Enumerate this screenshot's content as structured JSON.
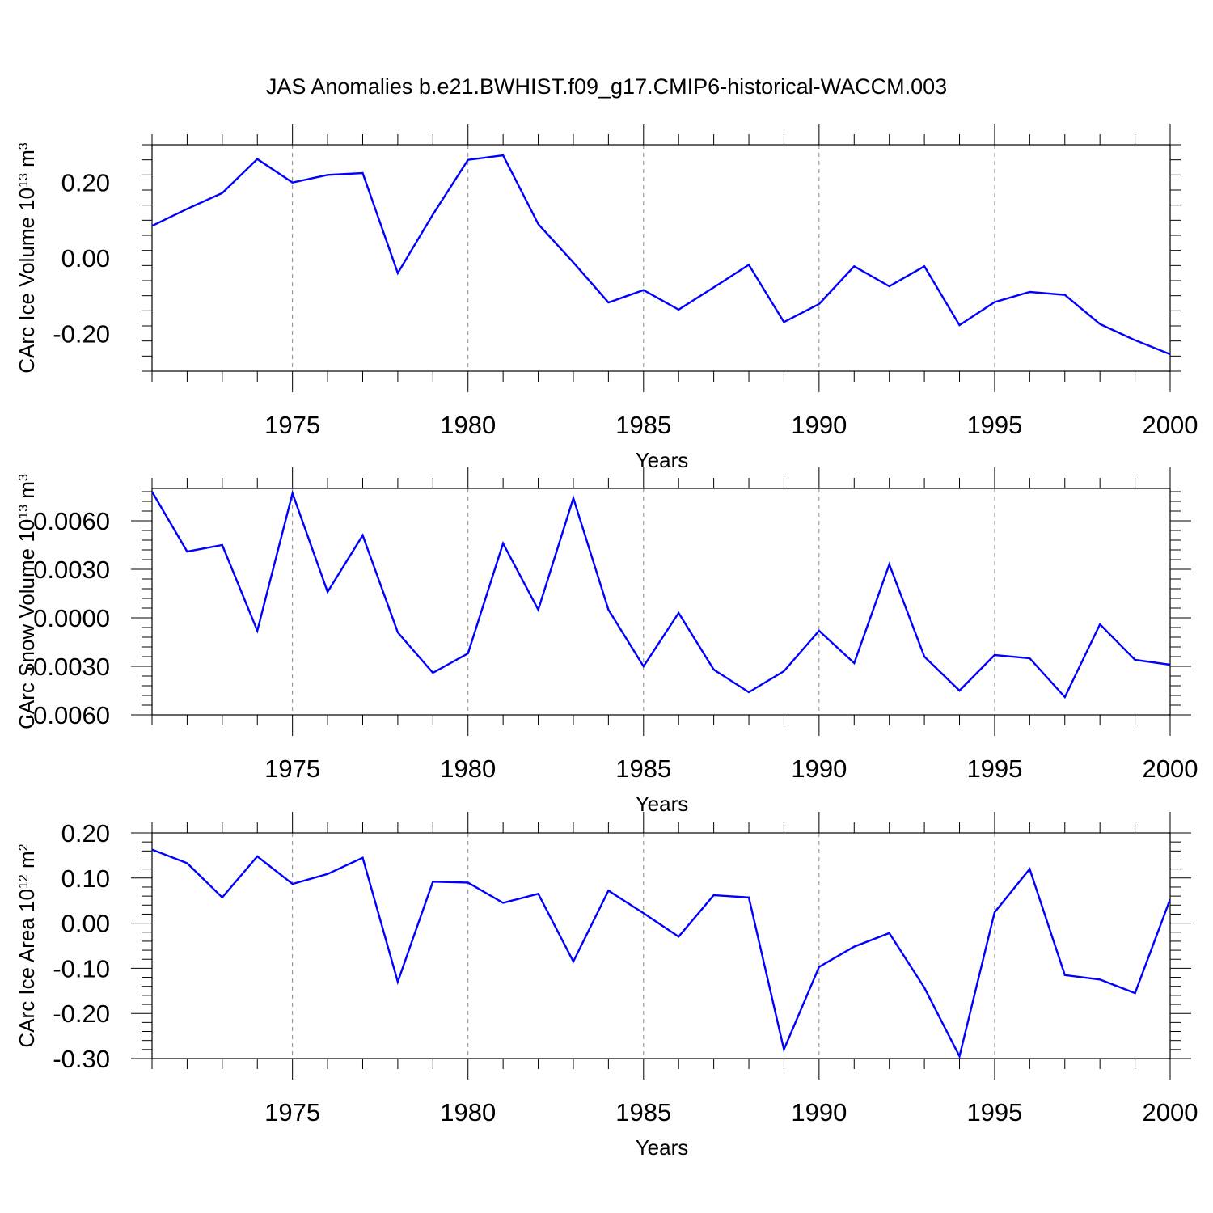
{
  "title": "JAS Anomalies b.e21.BWHIST.f09_g17.CMIP6-historical-WACCM.003",
  "colors": {
    "series": "#0000ff",
    "axis": "#000000",
    "grid": "#888888"
  },
  "chart_data": [
    {
      "type": "line",
      "name": "CArc Ice Volume",
      "ylabel": {
        "text": "CArc Ice Volume 10",
        "exp": "13",
        "unit": " m",
        "unit_exp": "3"
      },
      "xlabel": "Years",
      "xlim": [
        1971,
        2000
      ],
      "ylim": [
        -0.3,
        0.3
      ],
      "yticks": [
        -0.2,
        0.0,
        0.2
      ],
      "ytick_labels": [
        "-0.20",
        "0.00",
        "0.20"
      ],
      "xticks": [
        1975,
        1980,
        1985,
        1990,
        1995,
        2000
      ],
      "xtick_labels": [
        "1975",
        "1980",
        "1985",
        "1990",
        "1995",
        "2000"
      ],
      "grid_x": [
        1975,
        1980,
        1985,
        1990,
        1995
      ],
      "x": [
        1971,
        1972,
        1973,
        1974,
        1975,
        1976,
        1977,
        1978,
        1979,
        1980,
        1981,
        1982,
        1983,
        1984,
        1985,
        1986,
        1987,
        1988,
        1989,
        1990,
        1991,
        1992,
        1993,
        1994,
        1995,
        1996,
        1997,
        1998,
        1999,
        2000
      ],
      "y": [
        0.085,
        0.13,
        0.172,
        0.262,
        0.2,
        0.22,
        0.225,
        -0.04,
        0.115,
        0.26,
        0.272,
        0.09,
        -0.012,
        -0.118,
        -0.085,
        -0.137,
        -0.078,
        -0.018,
        -0.17,
        -0.122,
        -0.022,
        -0.075,
        -0.022,
        -0.178,
        -0.117,
        -0.09,
        -0.098,
        -0.175,
        -0.218,
        -0.255
      ]
    },
    {
      "type": "line",
      "name": "CArc Snow Volume",
      "ylabel": {
        "text": "CArc Snow Volume 10",
        "exp": "13",
        "unit": " m",
        "unit_exp": "3"
      },
      "xlabel": "Years",
      "xlim": [
        1971,
        2000
      ],
      "ylim": [
        -0.006,
        0.008
      ],
      "yticks": [
        -0.006,
        -0.003,
        0.0,
        0.003,
        0.006
      ],
      "ytick_labels": [
        "-0.0060",
        "-0.0030",
        "0.0000",
        "0.0030",
        "0.0060"
      ],
      "xticks": [
        1975,
        1980,
        1985,
        1990,
        1995,
        2000
      ],
      "xtick_labels": [
        "1975",
        "1980",
        "1985",
        "1990",
        "1995",
        "2000"
      ],
      "grid_x": [
        1975,
        1980,
        1985,
        1990,
        1995
      ],
      "x": [
        1971,
        1972,
        1973,
        1974,
        1975,
        1976,
        1977,
        1978,
        1979,
        1980,
        1981,
        1982,
        1983,
        1984,
        1985,
        1986,
        1987,
        1988,
        1989,
        1990,
        1991,
        1992,
        1993,
        1994,
        1995,
        1996,
        1997,
        1998,
        1999,
        2000
      ],
      "y": [
        0.0078,
        0.0041,
        0.0045,
        -0.0008,
        0.0077,
        0.0016,
        0.0051,
        -0.0009,
        -0.0034,
        -0.0022,
        0.0046,
        0.0005,
        0.0074,
        0.0005,
        -0.003,
        0.0003,
        -0.0032,
        -0.0046,
        -0.0033,
        -0.0008,
        -0.0028,
        0.0033,
        -0.0024,
        -0.0045,
        -0.0023,
        -0.0025,
        -0.0049,
        -0.0004,
        -0.0026,
        -0.0029
      ]
    },
    {
      "type": "line",
      "name": "CArc Ice Area",
      "ylabel": {
        "text": "CArc Ice Area 10",
        "exp": "12",
        "unit": " m",
        "unit_exp": "2"
      },
      "xlabel": "Years",
      "xlim": [
        1971,
        2000
      ],
      "ylim": [
        -0.3,
        0.2
      ],
      "yticks": [
        -0.3,
        -0.2,
        -0.1,
        0.0,
        0.1,
        0.2
      ],
      "ytick_labels": [
        "-0.30",
        "-0.20",
        "-0.10",
        "0.00",
        "0.10",
        "0.20"
      ],
      "xticks": [
        1975,
        1980,
        1985,
        1990,
        1995,
        2000
      ],
      "xtick_labels": [
        "1975",
        "1980",
        "1985",
        "1990",
        "1995",
        "2000"
      ],
      "grid_x": [
        1975,
        1980,
        1985,
        1990,
        1995
      ],
      "x": [
        1971,
        1972,
        1973,
        1974,
        1975,
        1976,
        1977,
        1978,
        1979,
        1980,
        1981,
        1982,
        1983,
        1984,
        1985,
        1986,
        1987,
        1988,
        1989,
        1990,
        1991,
        1992,
        1993,
        1994,
        1995,
        1996,
        1997,
        1998,
        1999,
        2000
      ],
      "y": [
        0.163,
        0.133,
        0.057,
        0.148,
        0.087,
        0.109,
        0.145,
        -0.13,
        0.092,
        0.09,
        0.045,
        0.065,
        -0.085,
        0.072,
        0.022,
        -0.03,
        0.062,
        0.057,
        -0.28,
        -0.097,
        -0.052,
        -0.022,
        -0.143,
        -0.295,
        0.024,
        0.12,
        -0.115,
        -0.125,
        -0.155,
        0.053
      ]
    }
  ]
}
